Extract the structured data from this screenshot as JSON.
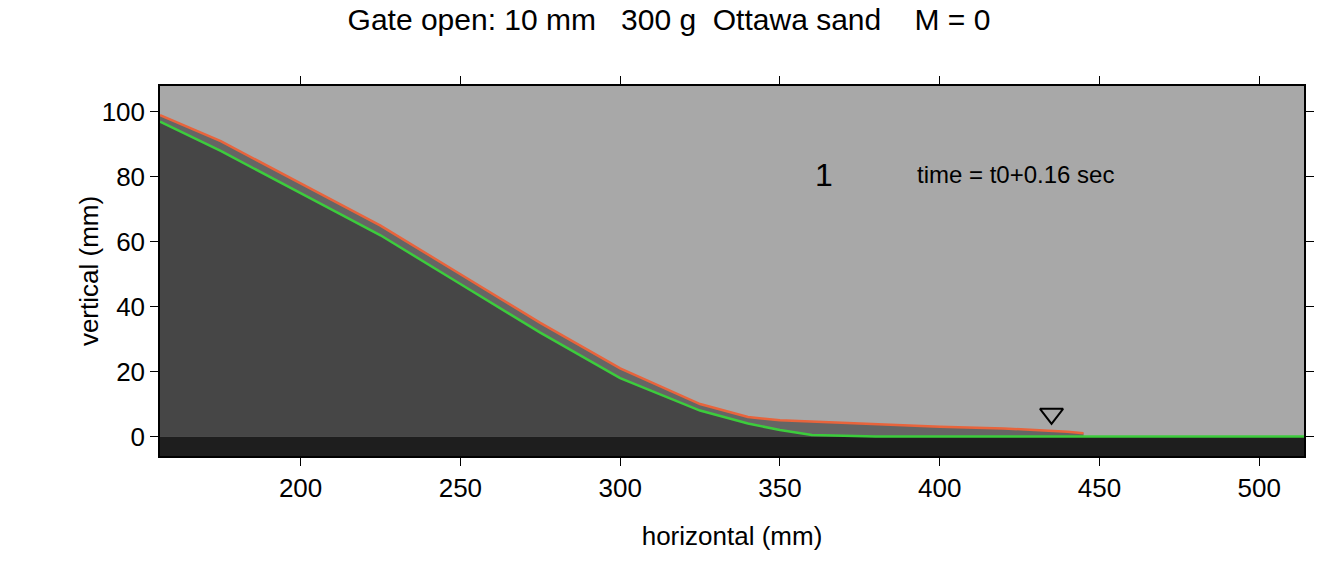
{
  "chart_data": {
    "type": "line",
    "title": "Gate open: 10 mm   300 g  Ottawa sand    M = 0",
    "x_label": "horizontal (mm)",
    "y_label": "vertical (mm)",
    "annotations": [
      "1",
      "time = t0+0.16 sec"
    ],
    "series": [
      {
        "color": "#e8643c",
        "x": [
          156,
          175,
          200,
          225,
          250,
          275,
          300,
          325,
          340,
          350,
          375,
          400,
          420,
          440,
          445
        ],
        "values": [
          99,
          91,
          78,
          65,
          50,
          35,
          21,
          10,
          6,
          5,
          4,
          3,
          2.5,
          1.5,
          1
        ]
      },
      {
        "color": "#3ccc3c",
        "x": [
          156,
          175,
          200,
          225,
          250,
          275,
          300,
          325,
          340,
          350,
          360,
          380,
          420,
          450,
          514
        ],
        "values": [
          97,
          88,
          75,
          62,
          47,
          32,
          18,
          8,
          4,
          2,
          0.5,
          0,
          0,
          0,
          0
        ]
      },
      {
        "type": "scatter",
        "marker": "triangle-down-open",
        "color": "#000000",
        "x": [
          435
        ],
        "values": [
          7
        ]
      }
    ],
    "xlim": [
      156,
      514
    ],
    "ylim": [
      -6,
      108
    ],
    "xticks": [
      200,
      250,
      300,
      350,
      400,
      450,
      500
    ],
    "yticks": [
      0,
      20,
      40,
      60,
      80,
      100
    ],
    "grid": false
  }
}
